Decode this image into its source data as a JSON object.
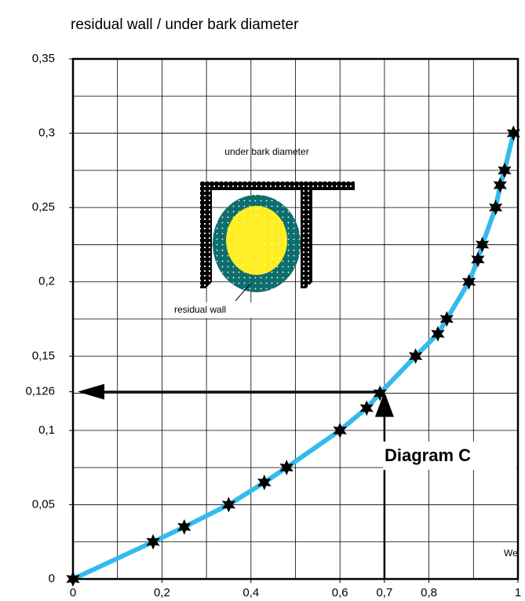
{
  "chart_data": {
    "type": "line",
    "title": "residual wall / under bark diameter",
    "annotations": {
      "top": "under bark diameter",
      "wall": "residual wall",
      "diagram": "Diagram C",
      "corner": "We"
    },
    "x": [
      0,
      0.18,
      0.25,
      0.35,
      0.43,
      0.48,
      0.6,
      0.66,
      0.69,
      0.77,
      0.82,
      0.84,
      0.89,
      0.91,
      0.92,
      0.95,
      0.96,
      0.97,
      0.99
    ],
    "series": [
      {
        "color": "#33bbee",
        "marker_color": "#000000",
        "values": [
          0,
          0.025,
          0.035,
          0.05,
          0.065,
          0.075,
          0.1,
          0.115,
          0.125,
          0.15,
          0.165,
          0.175,
          0.2,
          0.215,
          0.225,
          0.25,
          0.265,
          0.275,
          0.3
        ]
      }
    ],
    "reading": {
      "x": 0.7,
      "y": 0.126
    },
    "xlim": [
      0,
      1
    ],
    "ylim": [
      0,
      0.35
    ],
    "xticks": [
      0,
      {
        "value": 0.2,
        "label": "0,2"
      },
      {
        "value": 0.4,
        "label": "0,4"
      },
      {
        "value": 0.6,
        "label": "0,6"
      },
      {
        "value": 0.7,
        "label": "0,7"
      },
      {
        "value": 0.8,
        "label": "0,8"
      },
      1
    ],
    "yticks": [
      0,
      {
        "value": 0.05,
        "label": "0,05"
      },
      {
        "value": 0.1,
        "label": "0,1"
      },
      {
        "value": 0.126,
        "label": "0,126"
      },
      {
        "value": 0.15,
        "label": "0,15"
      },
      {
        "value": 0.2,
        "label": "0,2"
      },
      {
        "value": 0.25,
        "label": "0,25"
      },
      {
        "value": 0.3,
        "label": "0,3"
      },
      {
        "value": 0.35,
        "label": "0,35"
      }
    ],
    "xgrid": [
      0.1,
      0.2,
      0.3,
      0.4,
      0.5,
      0.6,
      0.7,
      0.8,
      0.9
    ],
    "ygrid": [
      0.025,
      0.05,
      0.075,
      0.1,
      0.125,
      0.15,
      0.175,
      0.2,
      0.225,
      0.25,
      0.275,
      0.3,
      0.325
    ],
    "grid": true
  }
}
